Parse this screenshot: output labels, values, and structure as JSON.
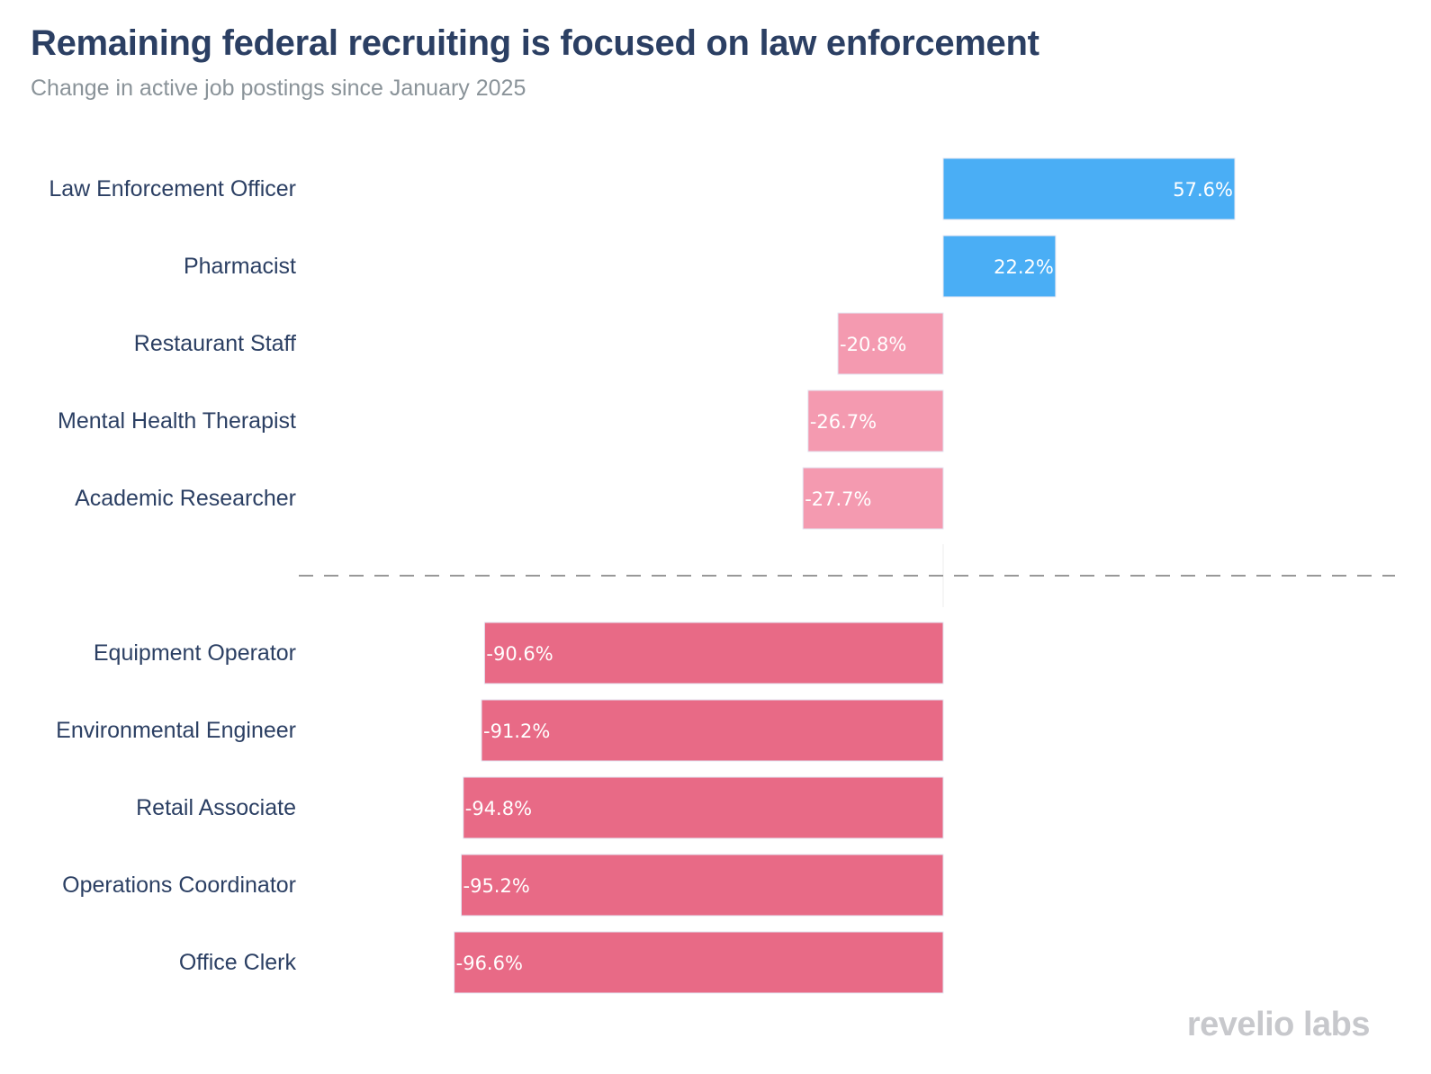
{
  "chart_data": {
    "type": "bar",
    "orientation": "horizontal",
    "title": "Remaining federal recruiting is focused on law enforcement",
    "subtitle": "Change in active job postings since January 2025",
    "categories": [
      "Law Enforcement Officer",
      "Pharmacist",
      "Restaurant Staff",
      "Mental Health Therapist",
      "Academic Researcher",
      "Equipment Operator",
      "Environmental Engineer",
      "Retail Associate",
      "Operations Coordinator",
      "Office Clerk"
    ],
    "values": [
      57.6,
      22.2,
      -20.8,
      -26.7,
      -27.7,
      -90.6,
      -91.2,
      -94.8,
      -95.2,
      -96.6
    ],
    "labels": [
      "57.6%",
      "22.2%",
      "-20.8%",
      "-26.7%",
      "-27.7%",
      "-90.6%",
      "-91.2%",
      "-94.8%",
      "-95.2%",
      "-96.6%"
    ],
    "groups": [
      "top",
      "top",
      "top",
      "top",
      "top",
      "bottom",
      "bottom",
      "bottom",
      "bottom",
      "bottom"
    ],
    "colors": {
      "positive": "#4aaef5",
      "negative_top": "#f49ab0",
      "negative_bottom": "#e86a86"
    },
    "xlim": [
      -100,
      90
    ],
    "grid": false,
    "separator": "dashed line between top 5 and bottom 5"
  },
  "branding": {
    "logo": "revelio labs"
  }
}
